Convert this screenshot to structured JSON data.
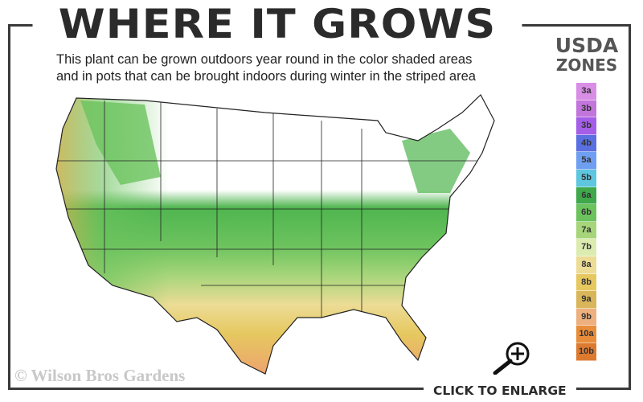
{
  "title": "WHERE IT GROWS",
  "subtitle": {
    "line1": "This plant can be grown outdoors year round in the color shaded areas",
    "line2": "and in pots that can be brought indoors during winter in the striped area"
  },
  "legend": {
    "title_line1": "USDA",
    "title_line2": "ZONES",
    "zones": [
      {
        "label": "3a",
        "color": "#d98ee6"
      },
      {
        "label": "3b",
        "color": "#c276dc"
      },
      {
        "label": "3b",
        "color": "#a45ee8"
      },
      {
        "label": "4b",
        "color": "#5a6fe0"
      },
      {
        "label": "5a",
        "color": "#6f9ff0"
      },
      {
        "label": "5b",
        "color": "#5ec6de"
      },
      {
        "label": "6a",
        "color": "#3ea84a"
      },
      {
        "label": "6b",
        "color": "#6cc35e"
      },
      {
        "label": "7a",
        "color": "#a6d57a"
      },
      {
        "label": "7b",
        "color": "#dcecb0"
      },
      {
        "label": "8a",
        "color": "#ecdc96"
      },
      {
        "label": "8b",
        "color": "#e6c860"
      },
      {
        "label": "9a",
        "color": "#dab65a"
      },
      {
        "label": "9b",
        "color": "#eeb07e"
      },
      {
        "label": "10a",
        "color": "#e88e3a"
      },
      {
        "label": "10b",
        "color": "#dc7a30"
      }
    ]
  },
  "watermark": "© Wilson Bros Gardens",
  "enlarge_label": "CLICK TO ENLARGE",
  "icons": {
    "zoom": "magnifier-plus-icon"
  }
}
